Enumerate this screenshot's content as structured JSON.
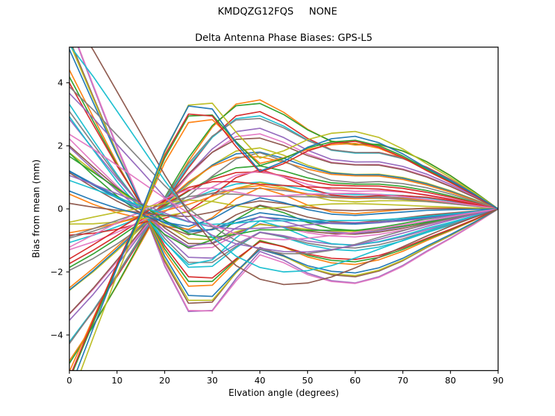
{
  "figure": {
    "suptitle": "KMDQZG12FQS     NONE",
    "background_color": "#ffffff"
  },
  "chart_data": {
    "type": "line",
    "title": "Delta Antenna Phase Biases: GPS-L5",
    "xlabel": "Elvation angle (degrees)",
    "ylabel": "Bias from mean (mm)",
    "xlim": [
      0,
      90
    ],
    "ylim": [
      -5.13,
      5.13
    ],
    "xticks": [
      0,
      10,
      20,
      30,
      40,
      50,
      60,
      70,
      80,
      90
    ],
    "yticks": [
      -4,
      -2,
      0,
      2,
      4
    ],
    "grid": false,
    "legend": "none",
    "frame_color": "#000000",
    "line_width": 1.8,
    "x": [
      0,
      5,
      10,
      15,
      20,
      25,
      30,
      35,
      40,
      45,
      50,
      55,
      60,
      65,
      70,
      75,
      80,
      85,
      90
    ],
    "basis_shapes": {
      "u": [
        -1.43,
        -1.09,
        -0.71,
        -0.31,
        0.09,
        0.46,
        0.77,
        0.97,
        1.0,
        0.89,
        0.74,
        0.63,
        0.6,
        0.6,
        0.54,
        0.44,
        0.31,
        0.16,
        0.0
      ],
      "v": [
        1.82,
        1.21,
        0.61,
        0.06,
        -0.55,
        -1.0,
        -1.0,
        -0.7,
        -0.44,
        -0.52,
        -0.64,
        -0.71,
        -0.73,
        -0.67,
        -0.56,
        -0.42,
        -0.29,
        -0.15,
        0.0
      ],
      "w": [
        2.6,
        2.1,
        1.55,
        1.0,
        0.45,
        -0.05,
        -0.45,
        -0.75,
        -0.93,
        -1.0,
        -0.98,
        -0.9,
        -0.78,
        -0.64,
        -0.5,
        -0.36,
        -0.23,
        -0.11,
        0.0
      ]
    },
    "series_coefficient_order": [
      "u",
      "v",
      "w"
    ],
    "series_coefficients": [
      [
        3.5,
        0.1,
        0
      ],
      [
        3.3,
        -0.1,
        0
      ],
      [
        3.15,
        0.15,
        0
      ],
      [
        2.95,
        0.0,
        0
      ],
      [
        2.8,
        -0.15,
        0
      ],
      [
        2.6,
        0.1,
        0
      ],
      [
        2.4,
        0.05,
        0
      ],
      [
        2.2,
        -0.1,
        0
      ],
      [
        2.0,
        0.15,
        0
      ],
      [
        1.8,
        0.0,
        0
      ],
      [
        1.6,
        -0.12,
        0
      ],
      [
        1.4,
        0.08,
        0
      ],
      [
        1.15,
        -0.05,
        0
      ],
      [
        0.9,
        0.12,
        0
      ],
      [
        0.65,
        0.0,
        0
      ],
      [
        0.1,
        3.3,
        0
      ],
      [
        -0.05,
        3.2,
        0
      ],
      [
        0.12,
        3.05,
        0
      ],
      [
        0.0,
        2.9,
        0
      ],
      [
        -0.1,
        2.7,
        0
      ],
      [
        0.1,
        2.5,
        0
      ],
      [
        0.0,
        2.3,
        0
      ],
      [
        -0.12,
        2.1,
        0
      ],
      [
        0.1,
        1.9,
        0
      ],
      [
        0.0,
        1.7,
        0
      ],
      [
        -0.08,
        1.5,
        0
      ],
      [
        0.1,
        1.3,
        0
      ],
      [
        0.0,
        1.1,
        0
      ],
      [
        -0.1,
        0.9,
        0
      ],
      [
        0.05,
        0.7,
        0
      ],
      [
        1.2,
        1.2,
        0
      ],
      [
        0.8,
        1.6,
        0
      ],
      [
        1.6,
        0.8,
        0
      ],
      [
        0.5,
        2.0,
        0
      ],
      [
        2.0,
        0.5,
        0
      ],
      [
        0.35,
        1.35,
        0
      ],
      [
        1.35,
        0.35,
        0
      ],
      [
        0.6,
        1.1,
        0
      ],
      [
        1.1,
        0.6,
        0
      ],
      [
        0.25,
        0.85,
        0
      ],
      [
        0.85,
        0.25,
        0
      ],
      [
        -0.4,
        0.6,
        0
      ],
      [
        0.6,
        -0.4,
        0
      ],
      [
        -0.25,
        0.3,
        0
      ],
      [
        0.3,
        -0.25,
        0
      ],
      [
        -0.55,
        0.15,
        0
      ],
      [
        0.15,
        -0.55,
        0
      ],
      [
        0.45,
        0.45,
        0
      ],
      [
        -0.15,
        -0.35,
        0
      ],
      [
        0.75,
        0.9,
        0
      ],
      [
        0.3,
        -2.6,
        0
      ],
      [
        0.1,
        -2.9,
        0
      ],
      [
        -0.2,
        -3.1,
        0
      ],
      [
        0.0,
        0.0,
        2.0
      ],
      [
        0.2,
        0.0,
        1.6
      ],
      [
        0.0,
        0.3,
        1.2
      ],
      [
        -0.2,
        0.0,
        0.8
      ],
      [
        0.0,
        0.0,
        2.4
      ],
      [
        0.2,
        -3.2,
        0
      ],
      [
        -0.3,
        -3.4,
        0
      ]
    ],
    "palette": [
      "#ff7f0e",
      "#2ca02c",
      "#d62728",
      "#17becf",
      "#7f7f7f",
      "#9467bd",
      "#e377c2",
      "#8c564b",
      "#bcbd22",
      "#1f77b4"
    ],
    "convergence": {
      "x": 90,
      "y": 0
    },
    "envelopes": {
      "upper_peak": {
        "x": 37,
        "y": 3.5
      },
      "lower_dip_1": {
        "x": 27,
        "y": -3.3
      },
      "lower_dip_2": {
        "x": 58,
        "y": -2.4
      }
    }
  }
}
